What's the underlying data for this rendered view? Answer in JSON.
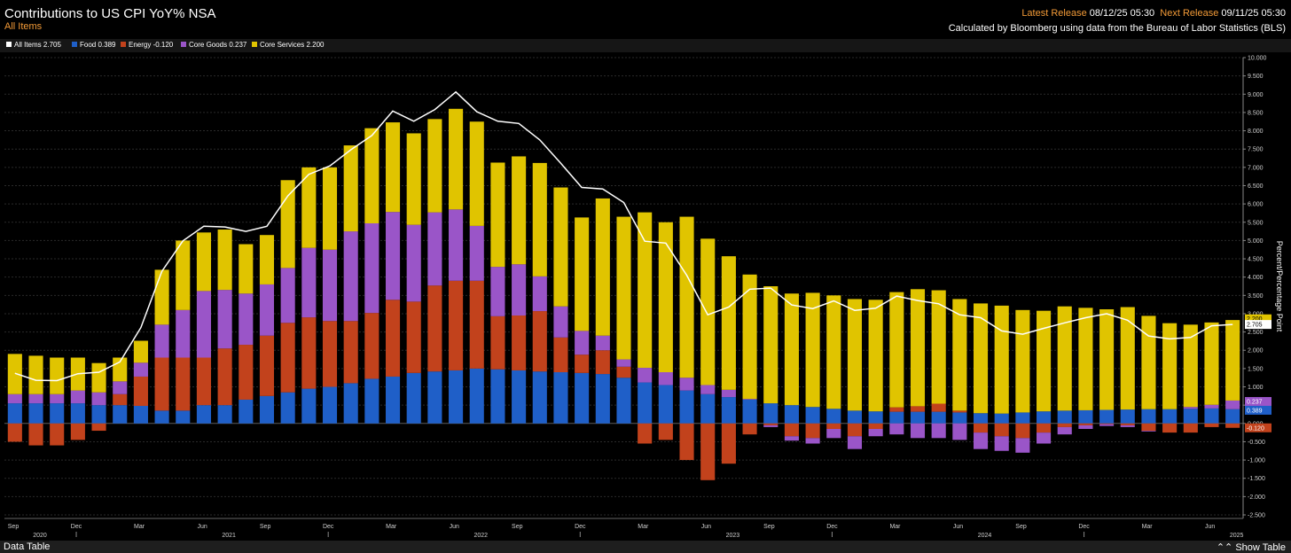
{
  "header": {
    "title": "Contributions to US CPI YoY% NSA",
    "subtitle": "All Items",
    "latest_release_label": "Latest Release",
    "latest_release_value": "08/12/25 05:30",
    "next_release_label": "Next Release",
    "next_release_value": "09/11/25 05:30",
    "source": "Calculated by Bloomberg using data from the Bureau of Labor Statistics (BLS)"
  },
  "legend": [
    {
      "name": "All Items",
      "value": "2.705",
      "color": "#ffffff"
    },
    {
      "name": "Food",
      "value": "0.389",
      "color": "#1f5fc8"
    },
    {
      "name": "Energy",
      "value": "-0.120",
      "color": "#c2421c"
    },
    {
      "name": "Core Goods",
      "value": "0.237",
      "color": "#9a55c8"
    },
    {
      "name": "Core Services",
      "value": "2.200",
      "color": "#e0c400"
    }
  ],
  "footer": {
    "data_table_label": "Data Table",
    "show_table_label": "Show Table",
    "show_table_icon": "double-chevron-up-icon"
  },
  "chart_data": {
    "type": "bar",
    "stacked": true,
    "title": "Contributions to US CPI YoY% NSA",
    "ylabel": "Percent/Percentage Point",
    "ylim": [
      -2.5,
      10.0
    ],
    "ytick_step": 0.5,
    "grid": true,
    "legend_position": "top-left",
    "x": [
      "2020-09",
      "2020-10",
      "2020-11",
      "2020-12",
      "2021-01",
      "2021-02",
      "2021-03",
      "2021-04",
      "2021-05",
      "2021-06",
      "2021-07",
      "2021-08",
      "2021-09",
      "2021-10",
      "2021-11",
      "2021-12",
      "2022-01",
      "2022-02",
      "2022-03",
      "2022-04",
      "2022-05",
      "2022-06",
      "2022-07",
      "2022-08",
      "2022-09",
      "2022-10",
      "2022-11",
      "2022-12",
      "2023-01",
      "2023-02",
      "2023-03",
      "2023-04",
      "2023-05",
      "2023-06",
      "2023-07",
      "2023-08",
      "2023-09",
      "2023-10",
      "2023-11",
      "2023-12",
      "2024-01",
      "2024-02",
      "2024-03",
      "2024-04",
      "2024-05",
      "2024-06",
      "2024-07",
      "2024-08",
      "2024-09",
      "2024-10",
      "2024-11",
      "2024-12",
      "2025-01",
      "2025-02",
      "2025-03",
      "2025-04",
      "2025-05",
      "2025-06",
      "2025-07"
    ],
    "x_tick_labels": [
      {
        "month": "Sep",
        "year": "2020"
      },
      {
        "month": "Dec",
        "year": ""
      },
      {
        "month": "Mar",
        "year": ""
      },
      {
        "month": "Jun",
        "year": "2021"
      },
      {
        "month": "Sep",
        "year": ""
      },
      {
        "month": "Dec",
        "year": ""
      },
      {
        "month": "Mar",
        "year": ""
      },
      {
        "month": "Jun",
        "year": "2022"
      },
      {
        "month": "Sep",
        "year": ""
      },
      {
        "month": "Dec",
        "year": ""
      },
      {
        "month": "Mar",
        "year": ""
      },
      {
        "month": "Jun",
        "year": "2023"
      },
      {
        "month": "Sep",
        "year": ""
      },
      {
        "month": "Dec",
        "year": ""
      },
      {
        "month": "Mar",
        "year": ""
      },
      {
        "month": "Jun",
        "year": "2024"
      },
      {
        "month": "Sep",
        "year": ""
      },
      {
        "month": "Dec",
        "year": ""
      },
      {
        "month": "Mar",
        "year": ""
      },
      {
        "month": "Jun",
        "year": "2025"
      }
    ],
    "series": [
      {
        "name": "Food",
        "color": "#1f5fc8",
        "values": [
          0.55,
          0.55,
          0.55,
          0.55,
          0.5,
          0.5,
          0.48,
          0.35,
          0.35,
          0.5,
          0.5,
          0.65,
          0.75,
          0.85,
          0.95,
          1.0,
          1.1,
          1.22,
          1.28,
          1.38,
          1.42,
          1.45,
          1.5,
          1.48,
          1.45,
          1.42,
          1.4,
          1.38,
          1.35,
          1.25,
          1.12,
          1.05,
          0.9,
          0.8,
          0.72,
          0.65,
          0.55,
          0.5,
          0.45,
          0.4,
          0.35,
          0.33,
          0.32,
          0.32,
          0.32,
          0.3,
          0.28,
          0.27,
          0.3,
          0.33,
          0.35,
          0.36,
          0.37,
          0.38,
          0.39,
          0.39,
          0.4,
          0.41,
          0.389
        ]
      },
      {
        "name": "Energy",
        "color": "#c2421c",
        "values": [
          -0.5,
          -0.6,
          -0.6,
          -0.45,
          -0.2,
          0.3,
          0.8,
          1.45,
          1.45,
          1.3,
          1.55,
          1.5,
          1.65,
          1.9,
          1.95,
          1.8,
          1.7,
          1.8,
          2.1,
          1.95,
          2.35,
          2.45,
          2.4,
          1.45,
          1.5,
          1.65,
          0.95,
          0.5,
          0.65,
          0.3,
          -0.55,
          -0.45,
          -1.0,
          -1.55,
          -1.1,
          -0.3,
          -0.05,
          -0.35,
          -0.4,
          -0.15,
          -0.35,
          -0.15,
          0.12,
          0.15,
          0.22,
          0.05,
          -0.25,
          -0.35,
          -0.4,
          -0.25,
          -0.1,
          -0.05,
          -0.02,
          -0.05,
          -0.2,
          -0.25,
          -0.25,
          -0.1,
          -0.12
        ]
      },
      {
        "name": "Core Goods",
        "color": "#9a55c8",
        "values": [
          0.25,
          0.25,
          0.25,
          0.35,
          0.35,
          0.35,
          0.38,
          0.9,
          1.3,
          1.82,
          1.6,
          1.4,
          1.4,
          1.5,
          1.9,
          1.95,
          2.45,
          2.45,
          2.4,
          2.1,
          2.0,
          1.95,
          1.5,
          1.35,
          1.4,
          0.95,
          0.85,
          0.65,
          0.4,
          0.2,
          0.4,
          0.35,
          0.35,
          0.25,
          0.2,
          0.02,
          -0.05,
          -0.12,
          -0.15,
          -0.25,
          -0.35,
          -0.2,
          -0.3,
          -0.4,
          -0.4,
          -0.45,
          -0.45,
          -0.4,
          -0.4,
          -0.3,
          -0.2,
          -0.1,
          -0.05,
          -0.05,
          -0.02,
          0.0,
          0.05,
          0.1,
          0.237
        ]
      },
      {
        "name": "Core Services",
        "color": "#e0c400",
        "values": [
          1.1,
          1.05,
          1.0,
          0.9,
          0.8,
          0.65,
          0.6,
          1.5,
          1.9,
          1.6,
          1.65,
          1.35,
          1.35,
          2.4,
          2.2,
          2.25,
          2.35,
          2.6,
          2.45,
          2.5,
          2.55,
          2.75,
          2.85,
          2.85,
          2.95,
          3.1,
          3.25,
          3.1,
          3.75,
          3.9,
          4.25,
          4.1,
          4.4,
          4.0,
          3.65,
          3.4,
          3.2,
          3.05,
          3.12,
          3.1,
          3.05,
          3.05,
          3.15,
          3.2,
          3.1,
          3.05,
          3.0,
          2.95,
          2.8,
          2.75,
          2.85,
          2.8,
          2.75,
          2.8,
          2.55,
          2.35,
          2.25,
          2.25,
          2.2
        ]
      },
      {
        "name": "All Items",
        "color": "#ffffff",
        "type": "line",
        "values": [
          1.37,
          1.18,
          1.17,
          1.36,
          1.4,
          1.68,
          2.62,
          4.16,
          4.99,
          5.39,
          5.37,
          5.25,
          5.39,
          6.22,
          6.81,
          7.04,
          7.48,
          7.87,
          8.54,
          8.26,
          8.58,
          9.06,
          8.52,
          8.26,
          8.2,
          7.75,
          7.11,
          6.45,
          6.41,
          6.04,
          4.98,
          4.93,
          4.05,
          2.97,
          3.18,
          3.67,
          3.7,
          3.24,
          3.14,
          3.35,
          3.09,
          3.15,
          3.48,
          3.36,
          3.27,
          2.97,
          2.89,
          2.53,
          2.44,
          2.6,
          2.75,
          2.89,
          3.0,
          2.82,
          2.39,
          2.31,
          2.35,
          2.67,
          2.705
        ]
      }
    ]
  }
}
